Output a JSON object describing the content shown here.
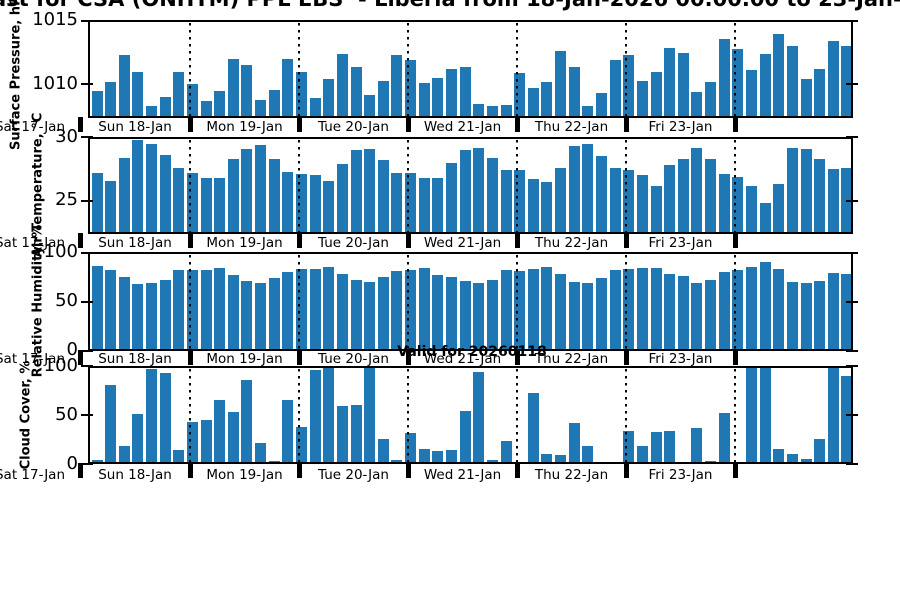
{
  "title": "ast for CSA (ONHTM) PPL EBS  - Liberia from 18-Jan-2026 00.00.00 to 23-Jan-2",
  "valid_label": "Valid for 20260118",
  "bar_color": "#1f77b4",
  "x_axis": {
    "edge_label": "Sat 17-Jan",
    "day_labels": [
      "Sun 18-Jan",
      "Mon 19-Jan",
      "Tue 20-Jan",
      "Wed 21-Jan",
      "Thu 22-Jan",
      "Fri 23-Jan"
    ],
    "slots_per_day": 8,
    "first_day_slots": 7
  },
  "chart_data": [
    {
      "type": "bar",
      "ylabel": "Surface Pressure, hPa",
      "ylim": [
        1007.4,
        1015.1
      ],
      "yticks": [
        1015,
        1010
      ],
      "values": [
        1009.5,
        1010.2,
        1012.3,
        1011.0,
        1008.3,
        1009.0,
        1011.0,
        1010.0,
        1008.7,
        1009.5,
        1012.0,
        1011.5,
        1008.8,
        1009.6,
        1012.0,
        1011.0,
        1008.9,
        1010.4,
        1012.4,
        1011.4,
        1009.2,
        1010.3,
        1012.3,
        1011.9,
        1010.1,
        1010.5,
        1011.2,
        1011.4,
        1008.5,
        1008.3,
        1008.4,
        1010.9,
        1009.7,
        1010.2,
        1012.6,
        1011.4,
        1008.3,
        1009.3,
        1011.9,
        1012.3,
        1010.3,
        1011.0,
        1012.9,
        1012.5,
        1009.4,
        1010.2,
        1013.6,
        1012.8,
        1011.1,
        1012.4,
        1014.0,
        1013.0,
        1010.4,
        1011.2,
        1013.4,
        1013.0
      ]
    },
    {
      "type": "bar",
      "ylabel": "Air Temperature, °C",
      "ylim": [
        22.4,
        30.05
      ],
      "yticks": [
        30,
        25
      ],
      "values": [
        27.2,
        26.6,
        28.4,
        29.8,
        29.5,
        28.6,
        27.6,
        27.2,
        26.8,
        26.8,
        28.3,
        29.1,
        29.4,
        28.3,
        27.3,
        27.1,
        27.0,
        26.6,
        27.9,
        29.0,
        29.1,
        28.2,
        27.2,
        27.2,
        26.8,
        26.8,
        28.0,
        29.0,
        29.2,
        28.4,
        27.4,
        27.4,
        26.7,
        26.5,
        27.6,
        29.3,
        29.5,
        28.5,
        27.6,
        27.4,
        27.0,
        26.2,
        27.8,
        28.3,
        29.2,
        28.3,
        27.1,
        26.9,
        26.2,
        24.8,
        26.3,
        29.2,
        29.1,
        28.3,
        27.5,
        27.6
      ]
    },
    {
      "type": "bar",
      "ylabel": "Relative Humidity, %",
      "ylim": [
        0,
        101
      ],
      "yticks": [
        100,
        50,
        0
      ],
      "values": [
        86,
        82,
        75,
        68,
        69,
        72,
        82,
        82,
        82,
        84,
        77,
        71,
        69,
        74,
        80,
        83,
        83,
        85,
        78,
        72,
        70,
        75,
        81,
        82,
        84,
        77,
        75,
        71,
        69,
        72,
        82,
        81,
        83,
        85,
        78,
        70,
        69,
        74,
        82,
        83,
        84,
        84,
        78,
        76,
        69,
        72,
        80,
        82,
        85,
        91,
        83,
        70,
        69,
        71,
        79,
        78
      ]
    },
    {
      "type": "bar",
      "ylabel": "Cloud Cover, %",
      "ylim": [
        0,
        100.5
      ],
      "yticks": [
        100,
        50,
        0
      ],
      "values": [
        4,
        81,
        18,
        51,
        97,
        93,
        14,
        43,
        45,
        66,
        53,
        86,
        22,
        3,
        66,
        38,
        96,
        100,
        59,
        60,
        100,
        26,
        4,
        32,
        15,
        13,
        14,
        54,
        94,
        4,
        24,
        2,
        73,
        10,
        9,
        42,
        18,
        1,
        1,
        34,
        18,
        33,
        34,
        1,
        37,
        3,
        52,
        2,
        100,
        100,
        15,
        10,
        5,
        26,
        100,
        90
      ]
    }
  ]
}
